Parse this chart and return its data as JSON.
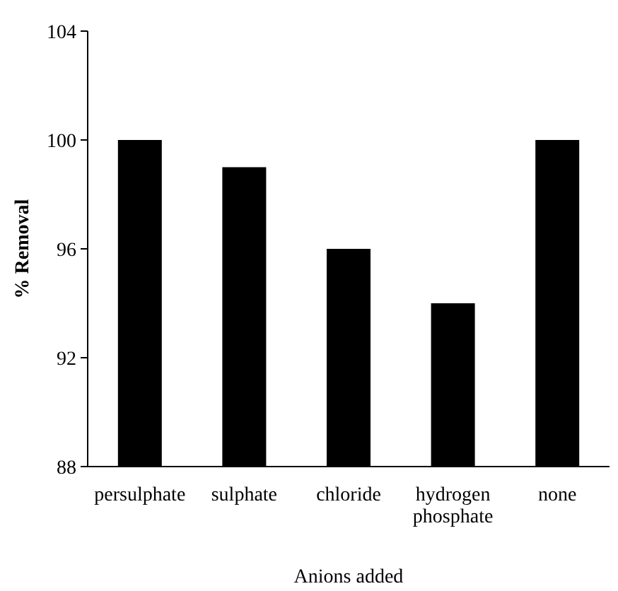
{
  "chart_data": {
    "type": "bar",
    "xlabel": "Anions added",
    "ylabel": "% Removal",
    "categories": [
      "persulphate",
      "sulphate",
      "chloride",
      "hydrogen phosphate",
      "none"
    ],
    "values": [
      100,
      99,
      96,
      94,
      100
    ],
    "color": "#000000",
    "ylim": [
      88,
      104
    ],
    "yticks": [
      88,
      92,
      96,
      100,
      104
    ],
    "grid": false
  }
}
